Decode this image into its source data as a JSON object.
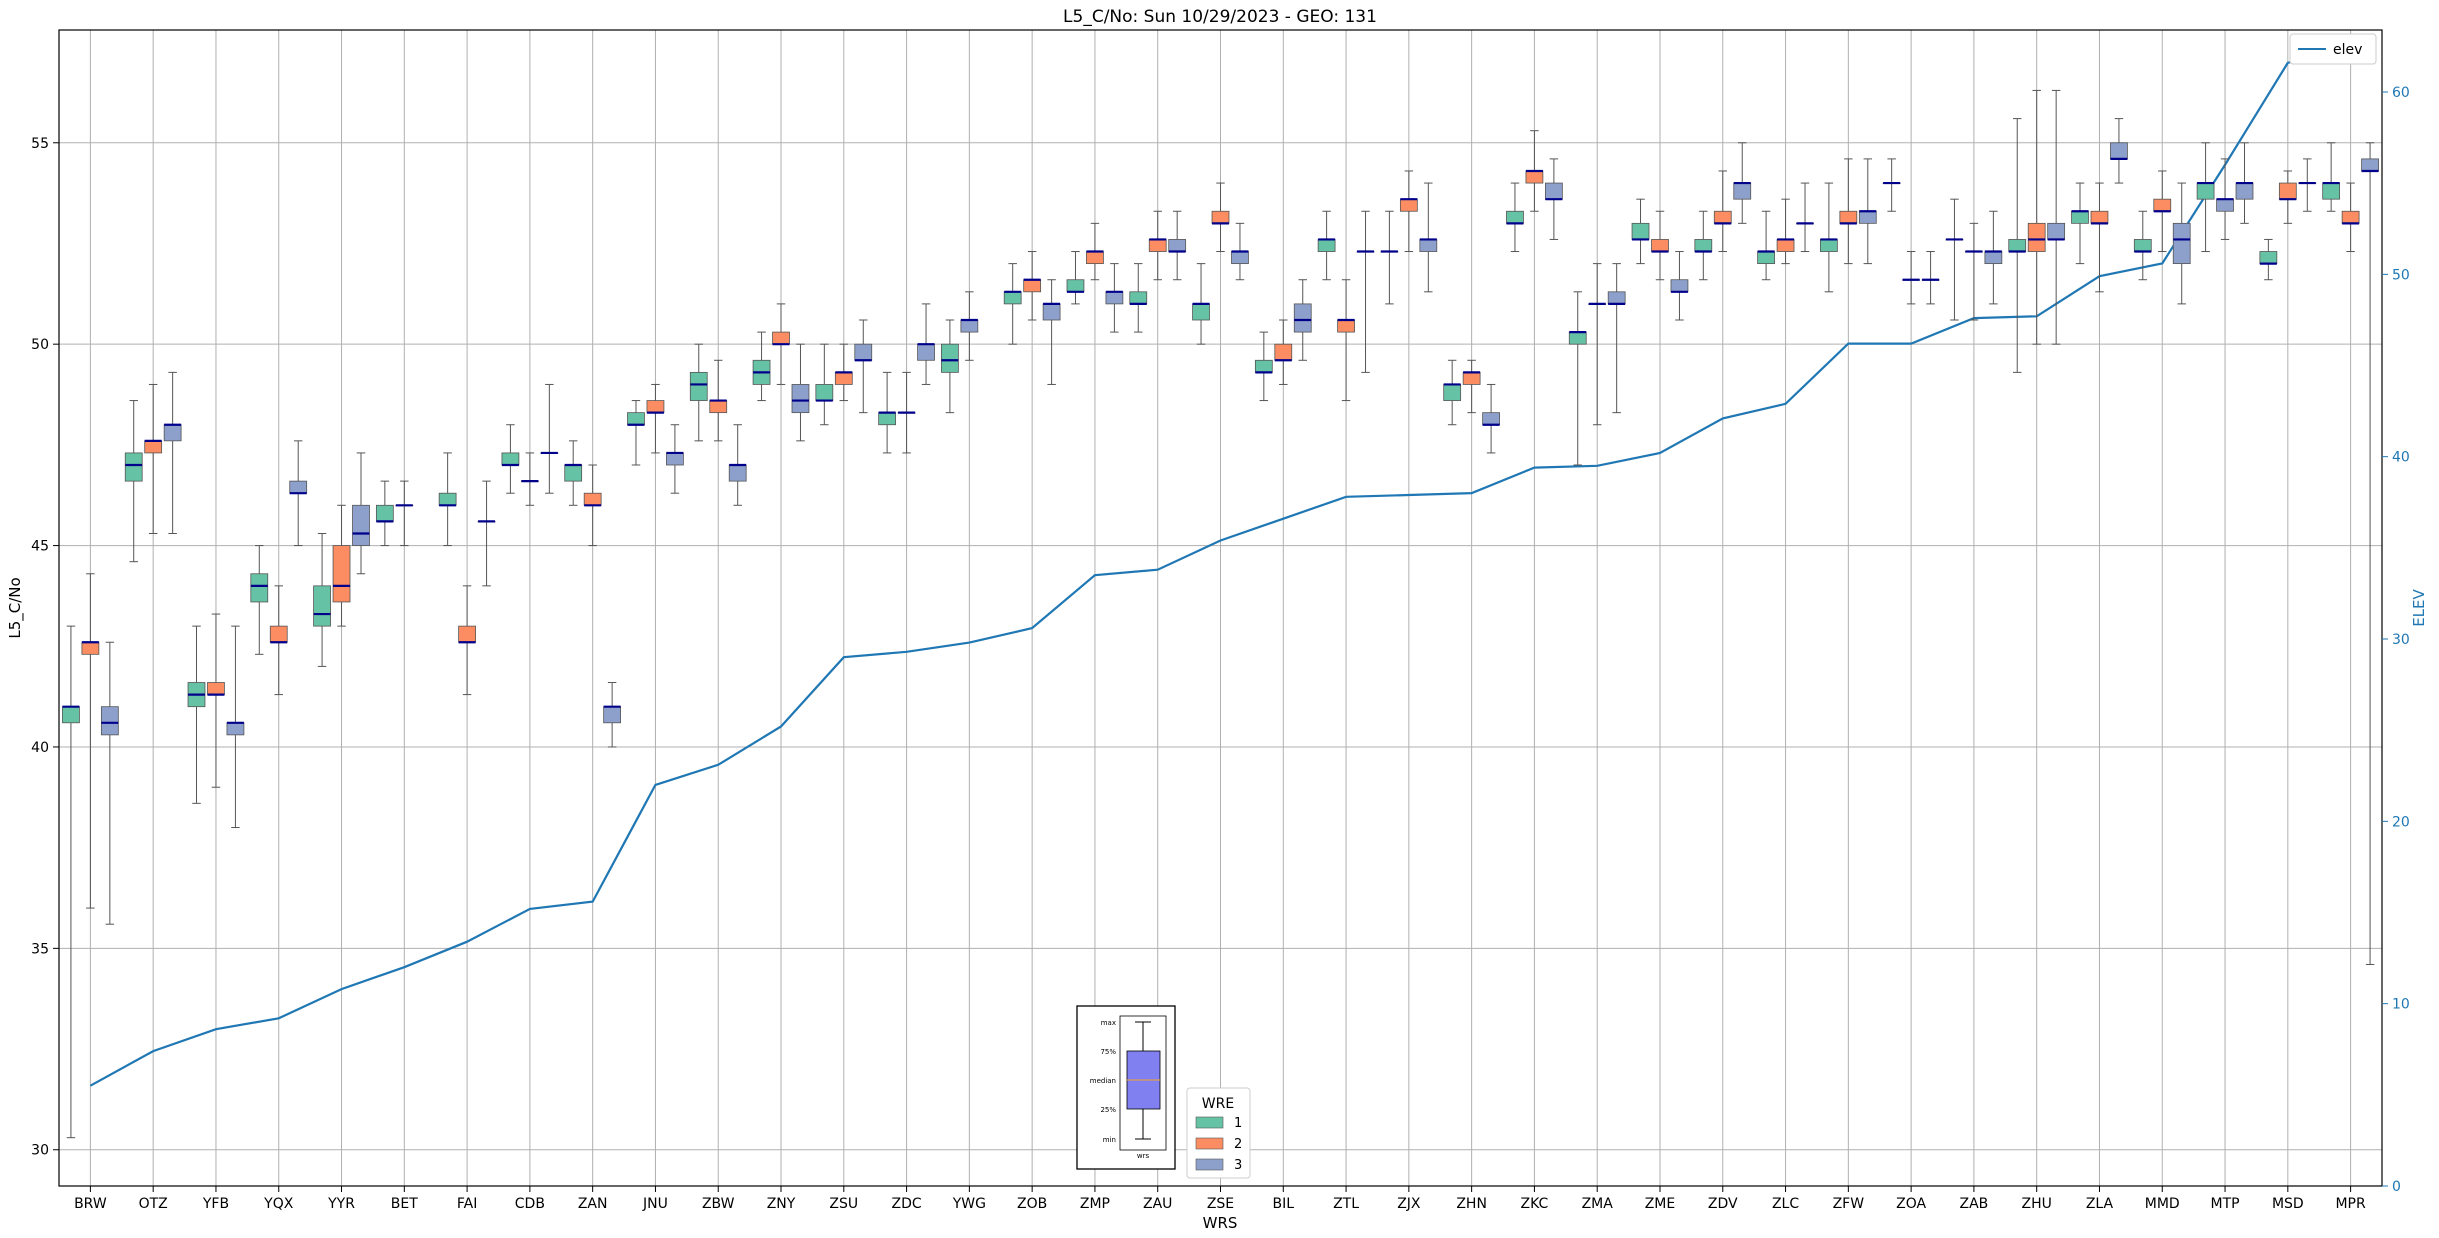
{
  "chart_data": {
    "type": "box",
    "title": "L5_C/No: Sun 10/29/2023 - GEO: 131",
    "xlabel": "WRS",
    "ylabel": "L5_C/No",
    "y2label": "ELEV",
    "ylim": [
      29.1,
      57.8
    ],
    "y2lim": [
      0,
      63.4
    ],
    "yticks": [
      "30",
      "35",
      "40",
      "45",
      "50",
      "55"
    ],
    "y2ticks": [
      "0",
      "10",
      "20",
      "30",
      "40",
      "50",
      "60"
    ],
    "grid": true,
    "legend_position": "top-right",
    "categories": [
      "BRW",
      "OTZ",
      "YFB",
      "YQX",
      "YYR",
      "BET",
      "FAI",
      "CDB",
      "ZAN",
      "JNU",
      "ZBW",
      "ZNY",
      "ZSU",
      "ZDC",
      "YWG",
      "ZOB",
      "ZMP",
      "ZAU",
      "ZSE",
      "BIL",
      "ZTL",
      "ZJX",
      "ZHN",
      "ZKC",
      "ZMA",
      "ZME",
      "ZDV",
      "ZLC",
      "ZFW",
      "ZOA",
      "ZAB",
      "ZHU",
      "ZLA",
      "MMD",
      "MTP",
      "MSD",
      "MPR"
    ],
    "colors": {
      "1": "#66c2a5",
      "2": "#fc8d62",
      "3": "#8da0cb",
      "median": "#00008b",
      "elev_line": "#1f77b4",
      "axis_right": "#1f77b4"
    },
    "elev_legend_label": "elev",
    "elev": [
      5.5,
      7.4,
      8.6,
      9.2,
      10.8,
      12.0,
      13.4,
      15.2,
      15.6,
      22.0,
      23.1,
      25.2,
      29.0,
      29.3,
      29.8,
      30.6,
      33.5,
      33.8,
      35.4,
      36.6,
      37.8,
      37.9,
      38.0,
      39.4,
      39.5,
      40.2,
      42.1,
      42.9,
      46.2,
      46.2,
      47.6,
      47.7,
      49.9,
      50.6,
      56.0,
      61.6,
      62.5
    ],
    "legend": {
      "title": "WRE",
      "entries": [
        "1",
        "2",
        "3"
      ]
    },
    "inset": {
      "labels": [
        "max",
        "75%",
        "median",
        "25%",
        "min"
      ],
      "xlabel": "wrs"
    },
    "boxes": [
      {
        "cat": "BRW",
        "wre": "1",
        "min": 30.3,
        "q1": 40.6,
        "med": 41.0,
        "q3": 41.0,
        "max": 43.0
      },
      {
        "cat": "BRW",
        "wre": "2",
        "min": 36.0,
        "q1": 42.3,
        "med": 42.6,
        "q3": 42.6,
        "max": 44.3
      },
      {
        "cat": "BRW",
        "wre": "3",
        "min": 35.6,
        "q1": 40.3,
        "med": 40.6,
        "q3": 41.0,
        "max": 42.6
      },
      {
        "cat": "OTZ",
        "wre": "1",
        "min": 44.6,
        "q1": 46.6,
        "med": 47.0,
        "q3": 47.3,
        "max": 48.6
      },
      {
        "cat": "OTZ",
        "wre": "2",
        "min": 45.3,
        "q1": 47.3,
        "med": 47.6,
        "q3": 47.6,
        "max": 49.0
      },
      {
        "cat": "OTZ",
        "wre": "3",
        "min": 45.3,
        "q1": 47.6,
        "med": 48.0,
        "q3": 48.0,
        "max": 49.3
      },
      {
        "cat": "YFB",
        "wre": "1",
        "min": 38.6,
        "q1": 41.0,
        "med": 41.3,
        "q3": 41.6,
        "max": 43.0
      },
      {
        "cat": "YFB",
        "wre": "2",
        "min": 39.0,
        "q1": 41.3,
        "med": 41.3,
        "q3": 41.6,
        "max": 43.3
      },
      {
        "cat": "YFB",
        "wre": "3",
        "min": 38.0,
        "q1": 40.3,
        "med": 40.6,
        "q3": 40.6,
        "max": 43.0
      },
      {
        "cat": "YQX",
        "wre": "1",
        "min": 42.3,
        "q1": 43.6,
        "med": 44.0,
        "q3": 44.3,
        "max": 45.0
      },
      {
        "cat": "YQX",
        "wre": "2",
        "min": 41.3,
        "q1": 42.6,
        "med": 42.6,
        "q3": 43.0,
        "max": 44.0
      },
      {
        "cat": "YQX",
        "wre": "3",
        "min": 45.0,
        "q1": 46.3,
        "med": 46.3,
        "q3": 46.6,
        "max": 47.6
      },
      {
        "cat": "YYR",
        "wre": "1",
        "min": 42.0,
        "q1": 43.0,
        "med": 43.3,
        "q3": 44.0,
        "max": 45.3
      },
      {
        "cat": "YYR",
        "wre": "2",
        "min": 43.0,
        "q1": 43.6,
        "med": 44.0,
        "q3": 45.0,
        "max": 46.0
      },
      {
        "cat": "YYR",
        "wre": "3",
        "min": 44.3,
        "q1": 45.0,
        "med": 45.3,
        "q3": 46.0,
        "max": 47.3
      },
      {
        "cat": "BET",
        "wre": "1",
        "min": 45.0,
        "q1": 45.6,
        "med": 45.6,
        "q3": 46.0,
        "max": 46.6
      },
      {
        "cat": "BET",
        "wre": "3",
        "min": 45.0,
        "q1": 46.0,
        "med": 46.0,
        "q3": 46.0,
        "max": 46.6
      },
      {
        "cat": "FAI",
        "wre": "1",
        "min": 45.0,
        "q1": 46.0,
        "med": 46.0,
        "q3": 46.3,
        "max": 47.3
      },
      {
        "cat": "FAI",
        "wre": "2",
        "min": 41.3,
        "q1": 42.6,
        "med": 42.6,
        "q3": 43.0,
        "max": 44.0
      },
      {
        "cat": "FAI",
        "wre": "3",
        "min": 44.0,
        "q1": 45.6,
        "med": 45.6,
        "q3": 45.6,
        "max": 46.6
      },
      {
        "cat": "CDB",
        "wre": "1",
        "min": 46.3,
        "q1": 47.0,
        "med": 47.0,
        "q3": 47.3,
        "max": 48.0
      },
      {
        "cat": "CDB",
        "wre": "3",
        "min": 46.0,
        "q1": 46.6,
        "med": 46.6,
        "q3": 46.6,
        "max": 47.3
      },
      {
        "cat": "CDB",
        "wre": "3",
        "min": 46.3,
        "q1": 47.3,
        "med": 47.3,
        "q3": 47.3,
        "max": 49.0
      },
      {
        "cat": "ZAN",
        "wre": "1",
        "min": 46.0,
        "q1": 46.6,
        "med": 47.0,
        "q3": 47.0,
        "max": 47.6
      },
      {
        "cat": "ZAN",
        "wre": "2",
        "min": 45.0,
        "q1": 46.0,
        "med": 46.0,
        "q3": 46.3,
        "max": 47.0
      },
      {
        "cat": "ZAN",
        "wre": "3",
        "min": 40.0,
        "q1": 40.6,
        "med": 41.0,
        "q3": 41.0,
        "max": 41.6
      },
      {
        "cat": "JNU",
        "wre": "1",
        "min": 47.0,
        "q1": 48.0,
        "med": 48.0,
        "q3": 48.3,
        "max": 48.6
      },
      {
        "cat": "JNU",
        "wre": "2",
        "min": 47.3,
        "q1": 48.3,
        "med": 48.3,
        "q3": 48.6,
        "max": 49.0
      },
      {
        "cat": "JNU",
        "wre": "3",
        "min": 46.3,
        "q1": 47.0,
        "med": 47.3,
        "q3": 47.3,
        "max": 48.0
      },
      {
        "cat": "ZBW",
        "wre": "1",
        "min": 47.6,
        "q1": 48.6,
        "med": 49.0,
        "q3": 49.3,
        "max": 50.0
      },
      {
        "cat": "ZBW",
        "wre": "2",
        "min": 47.6,
        "q1": 48.3,
        "med": 48.6,
        "q3": 48.6,
        "max": 49.6
      },
      {
        "cat": "ZBW",
        "wre": "3",
        "min": 46.0,
        "q1": 46.6,
        "med": 47.0,
        "q3": 47.0,
        "max": 48.0
      },
      {
        "cat": "ZNY",
        "wre": "1",
        "min": 48.6,
        "q1": 49.0,
        "med": 49.3,
        "q3": 49.6,
        "max": 50.3
      },
      {
        "cat": "ZNY",
        "wre": "2",
        "min": 49.0,
        "q1": 50.0,
        "med": 50.0,
        "q3": 50.3,
        "max": 51.0
      },
      {
        "cat": "ZNY",
        "wre": "3",
        "min": 47.6,
        "q1": 48.3,
        "med": 48.6,
        "q3": 49.0,
        "max": 50.0
      },
      {
        "cat": "ZSU",
        "wre": "1",
        "min": 48.0,
        "q1": 48.6,
        "med": 48.6,
        "q3": 49.0,
        "max": 50.0
      },
      {
        "cat": "ZSU",
        "wre": "2",
        "min": 48.6,
        "q1": 49.0,
        "med": 49.3,
        "q3": 49.3,
        "max": 50.0
      },
      {
        "cat": "ZSU",
        "wre": "3",
        "min": 48.3,
        "q1": 49.6,
        "med": 49.6,
        "q3": 50.0,
        "max": 50.6
      },
      {
        "cat": "ZDC",
        "wre": "1",
        "min": 47.3,
        "q1": 48.0,
        "med": 48.3,
        "q3": 48.3,
        "max": 49.3
      },
      {
        "cat": "ZDC",
        "wre": "3",
        "min": 47.3,
        "q1": 48.3,
        "med": 48.3,
        "q3": 48.3,
        "max": 49.3
      },
      {
        "cat": "ZDC",
        "wre": "3",
        "min": 49.0,
        "q1": 49.6,
        "med": 50.0,
        "q3": 50.0,
        "max": 51.0
      },
      {
        "cat": "YWG",
        "wre": "1",
        "min": 48.3,
        "q1": 49.3,
        "med": 49.6,
        "q3": 50.0,
        "max": 50.6
      },
      {
        "cat": "YWG",
        "wre": "3",
        "min": 49.6,
        "q1": 50.3,
        "med": 50.6,
        "q3": 50.6,
        "max": 51.3
      },
      {
        "cat": "ZOB",
        "wre": "1",
        "min": 50.0,
        "q1": 51.0,
        "med": 51.3,
        "q3": 51.3,
        "max": 52.0
      },
      {
        "cat": "ZOB",
        "wre": "2",
        "min": 50.6,
        "q1": 51.3,
        "med": 51.6,
        "q3": 51.6,
        "max": 52.3
      },
      {
        "cat": "ZOB",
        "wre": "3",
        "min": 49.0,
        "q1": 50.6,
        "med": 51.0,
        "q3": 51.0,
        "max": 51.6
      },
      {
        "cat": "ZMP",
        "wre": "1",
        "min": 51.0,
        "q1": 51.3,
        "med": 51.3,
        "q3": 51.6,
        "max": 52.3
      },
      {
        "cat": "ZMP",
        "wre": "2",
        "min": 51.6,
        "q1": 52.0,
        "med": 52.3,
        "q3": 52.3,
        "max": 53.0
      },
      {
        "cat": "ZMP",
        "wre": "3",
        "min": 50.3,
        "q1": 51.0,
        "med": 51.3,
        "q3": 51.3,
        "max": 52.0
      },
      {
        "cat": "ZAU",
        "wre": "1",
        "min": 50.3,
        "q1": 51.0,
        "med": 51.0,
        "q3": 51.3,
        "max": 52.0
      },
      {
        "cat": "ZAU",
        "wre": "2",
        "min": 51.6,
        "q1": 52.3,
        "med": 52.6,
        "q3": 52.6,
        "max": 53.3
      },
      {
        "cat": "ZAU",
        "wre": "3",
        "min": 51.6,
        "q1": 52.3,
        "med": 52.3,
        "q3": 52.6,
        "max": 53.3
      },
      {
        "cat": "ZSE",
        "wre": "1",
        "min": 50.0,
        "q1": 50.6,
        "med": 51.0,
        "q3": 51.0,
        "max": 52.0
      },
      {
        "cat": "ZSE",
        "wre": "2",
        "min": 52.3,
        "q1": 53.0,
        "med": 53.0,
        "q3": 53.3,
        "max": 54.0
      },
      {
        "cat": "ZSE",
        "wre": "3",
        "min": 51.6,
        "q1": 52.0,
        "med": 52.3,
        "q3": 52.3,
        "max": 53.0
      },
      {
        "cat": "BIL",
        "wre": "1",
        "min": 48.6,
        "q1": 49.3,
        "med": 49.3,
        "q3": 49.6,
        "max": 50.3
      },
      {
        "cat": "BIL",
        "wre": "2",
        "min": 49.0,
        "q1": 49.6,
        "med": 49.6,
        "q3": 50.0,
        "max": 50.6
      },
      {
        "cat": "BIL",
        "wre": "3",
        "min": 49.6,
        "q1": 50.3,
        "med": 50.6,
        "q3": 51.0,
        "max": 51.6
      },
      {
        "cat": "ZTL",
        "wre": "1",
        "min": 51.6,
        "q1": 52.3,
        "med": 52.6,
        "q3": 52.6,
        "max": 53.3
      },
      {
        "cat": "ZTL",
        "wre": "2",
        "min": 48.6,
        "q1": 50.3,
        "med": 50.6,
        "q3": 50.6,
        "max": 51.6
      },
      {
        "cat": "ZTL",
        "wre": "3",
        "min": 49.3,
        "q1": 52.3,
        "med": 52.3,
        "q3": 52.3,
        "max": 53.3
      },
      {
        "cat": "ZJX",
        "wre": "1",
        "min": 51.0,
        "q1": 52.3,
        "med": 52.3,
        "q3": 52.3,
        "max": 53.3
      },
      {
        "cat": "ZJX",
        "wre": "2",
        "min": 52.3,
        "q1": 53.3,
        "med": 53.6,
        "q3": 53.6,
        "max": 54.3
      },
      {
        "cat": "ZJX",
        "wre": "3",
        "min": 51.3,
        "q1": 52.3,
        "med": 52.6,
        "q3": 52.6,
        "max": 54.0
      },
      {
        "cat": "ZHN",
        "wre": "1",
        "min": 48.0,
        "q1": 48.6,
        "med": 49.0,
        "q3": 49.0,
        "max": 49.6
      },
      {
        "cat": "ZHN",
        "wre": "2",
        "min": 48.3,
        "q1": 49.0,
        "med": 49.3,
        "q3": 49.3,
        "max": 49.6
      },
      {
        "cat": "ZHN",
        "wre": "3",
        "min": 47.3,
        "q1": 48.0,
        "med": 48.0,
        "q3": 48.3,
        "max": 49.0
      },
      {
        "cat": "ZKC",
        "wre": "1",
        "min": 52.3,
        "q1": 53.0,
        "med": 53.0,
        "q3": 53.3,
        "max": 54.0
      },
      {
        "cat": "ZKC",
        "wre": "2",
        "min": 53.3,
        "q1": 54.0,
        "med": 54.3,
        "q3": 54.3,
        "max": 55.3
      },
      {
        "cat": "ZKC",
        "wre": "3",
        "min": 52.6,
        "q1": 53.6,
        "med": 53.6,
        "q3": 54.0,
        "max": 54.6
      },
      {
        "cat": "ZMA",
        "wre": "1",
        "min": 47.0,
        "q1": 50.0,
        "med": 50.3,
        "q3": 50.3,
        "max": 51.3
      },
      {
        "cat": "ZMA",
        "wre": "3",
        "min": 48.0,
        "q1": 51.0,
        "med": 51.0,
        "q3": 51.0,
        "max": 52.0
      },
      {
        "cat": "ZMA",
        "wre": "3",
        "min": 48.3,
        "q1": 51.0,
        "med": 51.0,
        "q3": 51.3,
        "max": 52.0
      },
      {
        "cat": "ZME",
        "wre": "1",
        "min": 52.0,
        "q1": 52.6,
        "med": 52.6,
        "q3": 53.0,
        "max": 53.6
      },
      {
        "cat": "ZME",
        "wre": "2",
        "min": 51.6,
        "q1": 52.3,
        "med": 52.3,
        "q3": 52.6,
        "max": 53.3
      },
      {
        "cat": "ZME",
        "wre": "3",
        "min": 50.6,
        "q1": 51.3,
        "med": 51.3,
        "q3": 51.6,
        "max": 52.3
      },
      {
        "cat": "ZDV",
        "wre": "1",
        "min": 51.6,
        "q1": 52.3,
        "med": 52.3,
        "q3": 52.6,
        "max": 53.3
      },
      {
        "cat": "ZDV",
        "wre": "2",
        "min": 52.3,
        "q1": 53.0,
        "med": 53.0,
        "q3": 53.3,
        "max": 54.3
      },
      {
        "cat": "ZDV",
        "wre": "3",
        "min": 53.0,
        "q1": 53.6,
        "med": 54.0,
        "q3": 54.0,
        "max": 55.0
      },
      {
        "cat": "ZLC",
        "wre": "1",
        "min": 51.6,
        "q1": 52.0,
        "med": 52.3,
        "q3": 52.3,
        "max": 53.3
      },
      {
        "cat": "ZLC",
        "wre": "2",
        "min": 52.0,
        "q1": 52.3,
        "med": 52.6,
        "q3": 52.6,
        "max": 53.6
      },
      {
        "cat": "ZLC",
        "wre": "3",
        "min": 52.3,
        "q1": 53.0,
        "med": 53.0,
        "q3": 53.0,
        "max": 54.0
      },
      {
        "cat": "ZFW",
        "wre": "1",
        "min": 51.3,
        "q1": 52.3,
        "med": 52.6,
        "q3": 52.6,
        "max": 54.0
      },
      {
        "cat": "ZFW",
        "wre": "2",
        "min": 52.0,
        "q1": 53.0,
        "med": 53.0,
        "q3": 53.3,
        "max": 54.6
      },
      {
        "cat": "ZFW",
        "wre": "3",
        "min": 52.0,
        "q1": 53.0,
        "med": 53.3,
        "q3": 53.3,
        "max": 54.6
      },
      {
        "cat": "ZOA",
        "wre": "1",
        "min": 53.3,
        "q1": 54.0,
        "med": 54.0,
        "q3": 54.0,
        "max": 54.6
      },
      {
        "cat": "ZOA",
        "wre": "1",
        "min": 51.0,
        "q1": 51.6,
        "med": 51.6,
        "q3": 51.6,
        "max": 52.3
      },
      {
        "cat": "ZOA",
        "wre": "3",
        "min": 51.0,
        "q1": 51.6,
        "med": 51.6,
        "q3": 51.6,
        "max": 52.3
      },
      {
        "cat": "ZAB",
        "wre": "1",
        "min": 50.6,
        "q1": 52.6,
        "med": 52.6,
        "q3": 52.6,
        "max": 53.6
      },
      {
        "cat": "ZAB",
        "wre": "2",
        "min": 50.6,
        "q1": 52.3,
        "med": 52.3,
        "q3": 52.3,
        "max": 53.0
      },
      {
        "cat": "ZAB",
        "wre": "3",
        "min": 51.0,
        "q1": 52.0,
        "med": 52.3,
        "q3": 52.3,
        "max": 53.3
      },
      {
        "cat": "ZHU",
        "wre": "1",
        "min": 49.3,
        "q1": 52.3,
        "med": 52.3,
        "q3": 52.6,
        "max": 55.6
      },
      {
        "cat": "ZHU",
        "wre": "2",
        "min": 50.0,
        "q1": 52.3,
        "med": 52.6,
        "q3": 53.0,
        "max": 56.3
      },
      {
        "cat": "ZHU",
        "wre": "3",
        "min": 50.0,
        "q1": 52.6,
        "med": 52.6,
        "q3": 53.0,
        "max": 56.3
      },
      {
        "cat": "ZLA",
        "wre": "1",
        "min": 52.0,
        "q1": 53.0,
        "med": 53.3,
        "q3": 53.3,
        "max": 54.0
      },
      {
        "cat": "ZLA",
        "wre": "2",
        "min": 51.3,
        "q1": 53.0,
        "med": 53.0,
        "q3": 53.3,
        "max": 54.0
      },
      {
        "cat": "ZLA",
        "wre": "3",
        "min": 54.0,
        "q1": 54.6,
        "med": 54.6,
        "q3": 55.0,
        "max": 55.6
      },
      {
        "cat": "MMD",
        "wre": "1",
        "min": 51.6,
        "q1": 52.3,
        "med": 52.3,
        "q3": 52.6,
        "max": 53.3
      },
      {
        "cat": "MMD",
        "wre": "2",
        "min": 52.3,
        "q1": 53.3,
        "med": 53.3,
        "q3": 53.6,
        "max": 54.3
      },
      {
        "cat": "MMD",
        "wre": "3",
        "min": 51.0,
        "q1": 52.0,
        "med": 52.6,
        "q3": 53.0,
        "max": 54.0
      },
      {
        "cat": "MTP",
        "wre": "1",
        "min": 52.3,
        "q1": 53.6,
        "med": 54.0,
        "q3": 54.0,
        "max": 55.0
      },
      {
        "cat": "MTP",
        "wre": "3",
        "min": 52.6,
        "q1": 53.3,
        "med": 53.6,
        "q3": 53.6,
        "max": 54.6
      },
      {
        "cat": "MTP",
        "wre": "3",
        "min": 53.0,
        "q1": 53.6,
        "med": 54.0,
        "q3": 54.0,
        "max": 55.0
      },
      {
        "cat": "MSD",
        "wre": "1",
        "min": 51.6,
        "q1": 52.0,
        "med": 52.0,
        "q3": 52.3,
        "max": 52.6
      },
      {
        "cat": "MSD",
        "wre": "2",
        "min": 53.0,
        "q1": 53.6,
        "med": 53.6,
        "q3": 54.0,
        "max": 54.3
      },
      {
        "cat": "MSD",
        "wre": "2",
        "min": 53.3,
        "q1": 54.0,
        "med": 54.0,
        "q3": 54.0,
        "max": 54.6
      },
      {
        "cat": "MPR",
        "wre": "1",
        "min": 53.3,
        "q1": 53.6,
        "med": 54.0,
        "q3": 54.0,
        "max": 55.0
      },
      {
        "cat": "MPR",
        "wre": "2",
        "min": 52.3,
        "q1": 53.0,
        "med": 53.0,
        "q3": 53.3,
        "max": 54.0
      },
      {
        "cat": "MPR",
        "wre": "3",
        "min": 34.6,
        "q1": 54.3,
        "med": 54.3,
        "q3": 54.6,
        "max": 55.0
      }
    ]
  }
}
